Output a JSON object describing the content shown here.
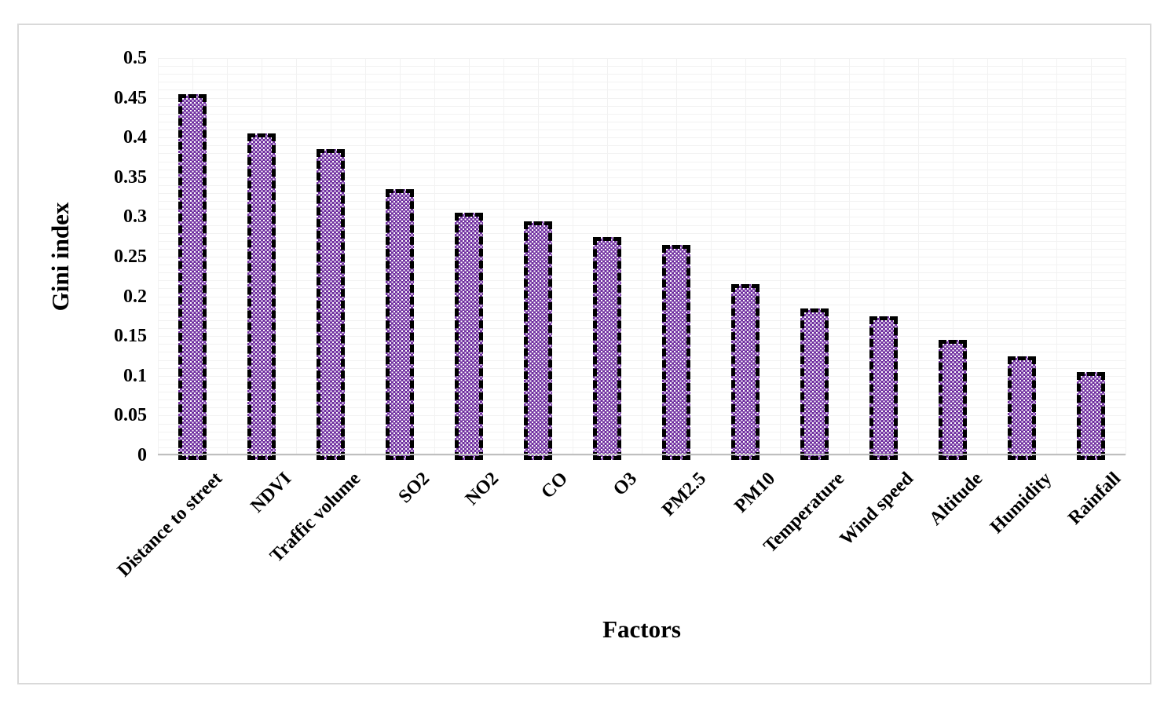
{
  "figure": {
    "background_color": "#ffffff",
    "border_color": "#d9d9d9"
  },
  "chart_data": {
    "type": "bar",
    "title": "",
    "xlabel": "Factors",
    "ylabel": "Gini index",
    "categories": [
      "Distance to street",
      "NDVI",
      "Traffic volume",
      "SO2",
      "NO2",
      "CO",
      "O3",
      "PM2.5",
      "PM10",
      "Temperature",
      "Wind speed",
      "Altitude",
      "Humidity",
      "Rainfall"
    ],
    "values": [
      0.45,
      0.4,
      0.38,
      0.33,
      0.3,
      0.29,
      0.27,
      0.26,
      0.21,
      0.18,
      0.17,
      0.14,
      0.12,
      0.1
    ],
    "ylim": [
      0,
      0.5
    ],
    "ytick_step": 0.05,
    "ytick_labels": [
      "0",
      "0.05",
      "0.1",
      "0.15",
      "0.2",
      "0.25",
      "0.3",
      "0.35",
      "0.4",
      "0.45",
      "0.5"
    ],
    "minor_grid_step": 0.01,
    "grid": "light minor horizontal gridlines every 0.01 and light vertical gridlines at half-category intervals",
    "legend_position": "none",
    "bar_style": {
      "fill_color": "#7030A0",
      "pattern": "white polka dots on purple",
      "dot_color": "#ffffff",
      "border_style": "thick black dashed",
      "border_color": "#000000"
    },
    "gridline_color": "#f2f2f2",
    "axis_line_color": "#bfbfbf",
    "text_color": "#000000"
  }
}
